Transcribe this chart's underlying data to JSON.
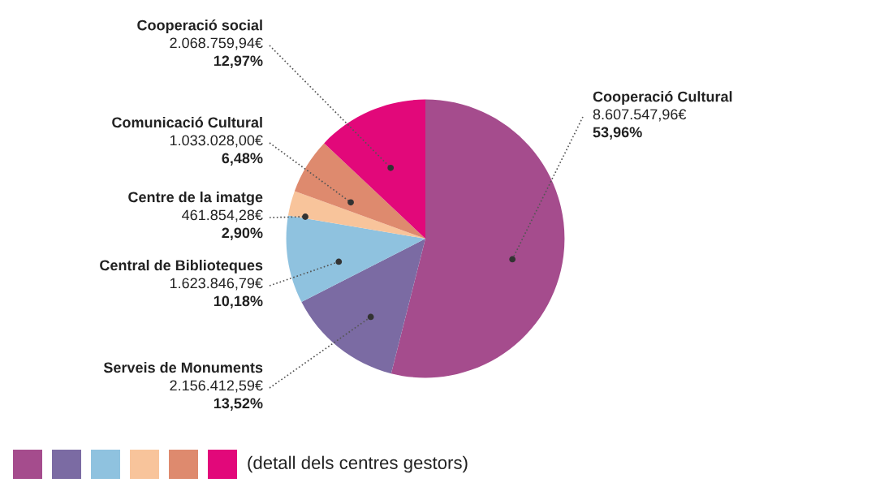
{
  "chart_data": {
    "type": "pie",
    "categories": [
      "Cooperació Cultural",
      "Serveis de Monuments",
      "Central de Biblioteques",
      "Centre de la imatge",
      "Comunicació Cultural",
      "Cooperació social"
    ],
    "values": [
      53.96,
      13.52,
      10.18,
      2.9,
      6.48,
      12.97
    ],
    "value_labels": [
      "8.607.547,96€\n53,96%",
      "2.156.412,59€\n13,52%",
      "1.623.846,79€\n10,18%",
      "461.854,28€\n2,90%",
      "1.033.028,00€\n6,48%",
      "2.068.759,94€\n12,97%"
    ],
    "colors": [
      "#a54c8d",
      "#7b6ba3",
      "#8fc2df",
      "#f8c49b",
      "#de8a6e",
      "#e2087a"
    ],
    "annotations": [
      "(detall dels centres gestors)"
    ]
  }
}
